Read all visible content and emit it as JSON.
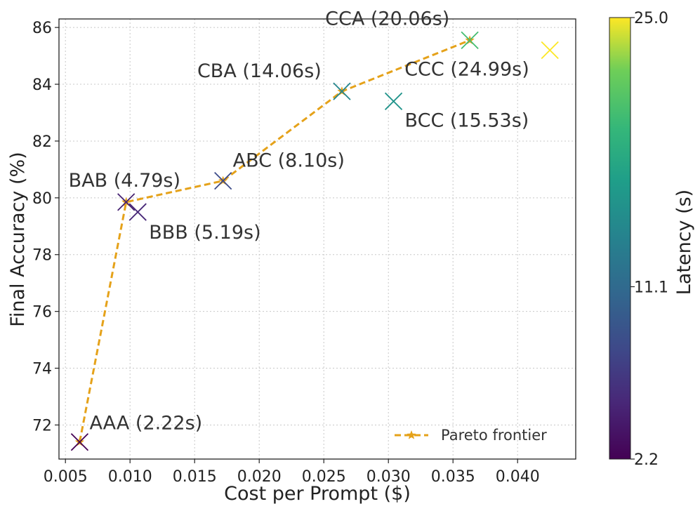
{
  "chart_data": {
    "type": "scatter",
    "xlabel": "Cost per Prompt ($)",
    "ylabel": "Final Accuracy (%)",
    "xlim": [
      0.0045,
      0.0445
    ],
    "ylim": [
      70.8,
      86.3
    ],
    "xticks": [
      "0.005",
      "0.010",
      "0.015",
      "0.020",
      "0.025",
      "0.030",
      "0.035",
      "0.040"
    ],
    "yticks": [
      "72",
      "74",
      "76",
      "78",
      "80",
      "82",
      "84",
      "86"
    ],
    "grid": true,
    "points": [
      {
        "label": "AAA (2.22s)",
        "x": 0.0061,
        "y": 71.4,
        "latency": 2.22
      },
      {
        "label": "BAB (4.79s)",
        "x": 0.0097,
        "y": 79.85,
        "latency": 4.79
      },
      {
        "label": "BBB (5.19s)",
        "x": 0.0106,
        "y": 79.5,
        "latency": 5.19
      },
      {
        "label": "ABC (8.10s)",
        "x": 0.0172,
        "y": 80.6,
        "latency": 8.1
      },
      {
        "label": "CBA (14.06s)",
        "x": 0.0264,
        "y": 83.75,
        "latency": 14.06
      },
      {
        "label": "BCC (15.53s)",
        "x": 0.0304,
        "y": 83.4,
        "latency": 15.53
      },
      {
        "label": "CCA (20.06s)",
        "x": 0.0363,
        "y": 85.55,
        "latency": 20.06
      },
      {
        "label": "CCC (24.99s)",
        "x": 0.0425,
        "y": 85.2,
        "latency": 24.99
      }
    ],
    "pareto_frontier": {
      "name": "Pareto frontier",
      "color": "#e5a21a",
      "x": [
        0.0061,
        0.0097,
        0.0172,
        0.0264,
        0.0363
      ],
      "y": [
        71.4,
        79.85,
        80.6,
        83.75,
        85.55
      ]
    },
    "legend": {
      "entries": [
        "Pareto frontier"
      ],
      "placement": "lower-right"
    },
    "colorbar": {
      "label": "Latency (s)",
      "colormap": "viridis",
      "min": 2.2,
      "max": 25.0,
      "ticks": [
        {
          "value": 2.2,
          "label": "2.2"
        },
        {
          "value": 11.1,
          "label": "11.1"
        },
        {
          "value": 25.0,
          "label": "25.0"
        }
      ]
    }
  }
}
